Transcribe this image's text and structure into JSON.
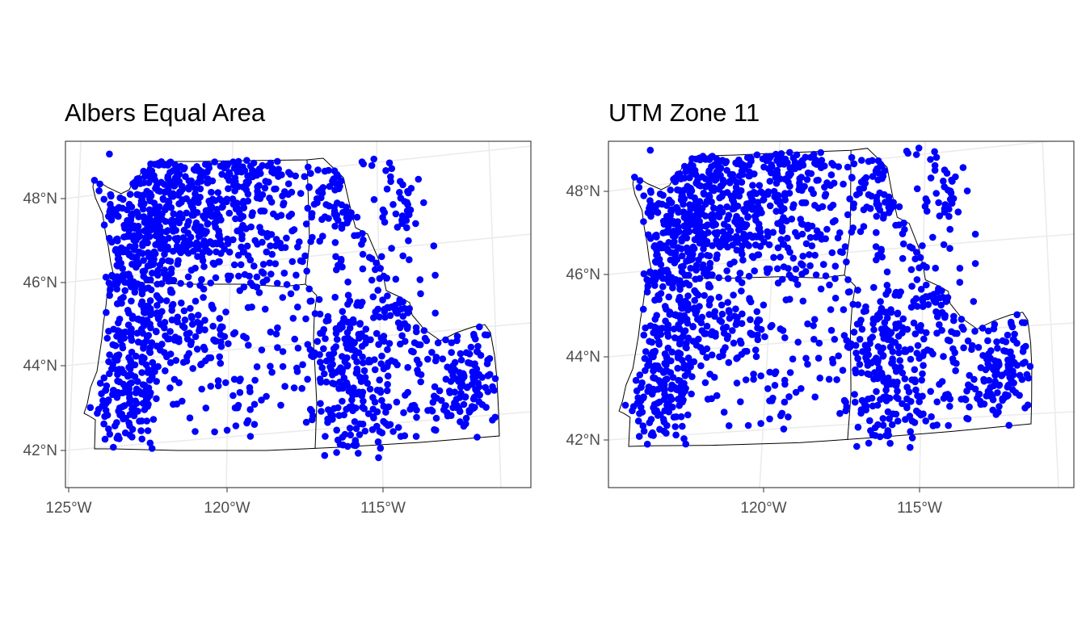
{
  "panels": [
    {
      "title": "Albers Equal Area",
      "y_ticks": [
        "48°N",
        "46°N",
        "44°N",
        "42°N"
      ],
      "x_ticks": [
        "125°W",
        "120°W",
        "115°W"
      ]
    },
    {
      "title": "UTM Zone 11",
      "y_ticks": [
        "48°N",
        "46°N",
        "44°N",
        "42°N"
      ],
      "x_ticks": [
        "120°W",
        "115°W"
      ]
    }
  ],
  "colors": {
    "points": "#0000ff",
    "graticule": "#ebebeb",
    "frame": "#333333",
    "boundaries": "#000000"
  },
  "map_data": {
    "region": "Washington, Oregon, Idaho",
    "layers": [
      "state boundaries",
      "site points"
    ],
    "point_count_approx": 1500,
    "lon_range": [
      -124.7,
      -111.0
    ],
    "lat_range": [
      41.3,
      49.0
    ]
  }
}
